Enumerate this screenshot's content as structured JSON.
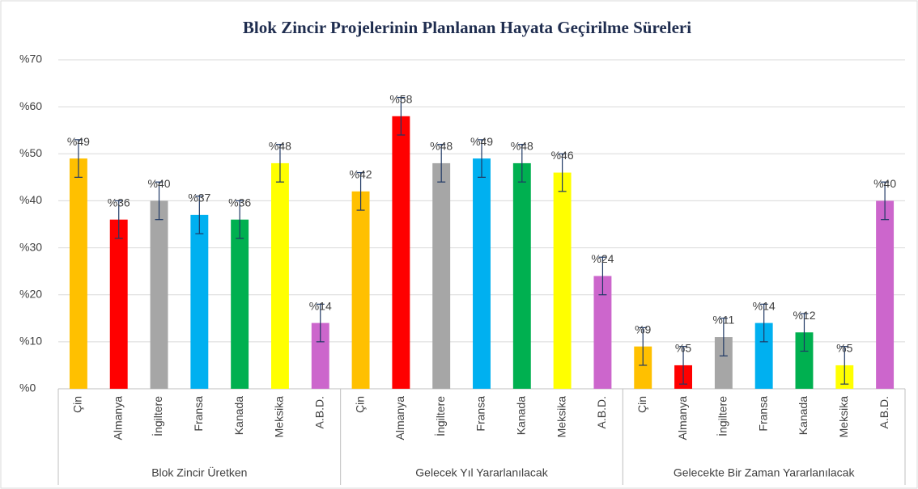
{
  "chart_data": {
    "type": "bar",
    "title": "Blok Zincir Projelerinin Planlanan Hayata Geçirilme Süreleri",
    "categories": [
      "Blok Zincir Üretken",
      "Gelecek Yıl Yararlanılacak",
      "Gelecekte Bir Zaman Yararlanılacak"
    ],
    "series": [
      {
        "name": "Çin",
        "color": "#ffc000",
        "values": [
          49,
          42,
          9
        ],
        "value_labels": [
          "%49",
          "%42",
          "%9"
        ],
        "errors": [
          4,
          4,
          4
        ]
      },
      {
        "name": "Almanya",
        "color": "#ff0000",
        "values": [
          36,
          58,
          5
        ],
        "value_labels": [
          "%36",
          "%58",
          "%5"
        ],
        "errors": [
          4,
          4,
          4
        ]
      },
      {
        "name": "İngiltere",
        "color": "#a6a6a6",
        "values": [
          40,
          48,
          11
        ],
        "value_labels": [
          "%40",
          "%48",
          "%11"
        ],
        "errors": [
          4,
          4,
          4
        ]
      },
      {
        "name": "Fransa",
        "color": "#00b0f0",
        "values": [
          37,
          49,
          14
        ],
        "value_labels": [
          "%37",
          "%49",
          "%14"
        ],
        "errors": [
          4,
          4,
          4
        ]
      },
      {
        "name": "Kanada",
        "color": "#00b050",
        "values": [
          36,
          48,
          12
        ],
        "value_labels": [
          "%36",
          "%48",
          "%12"
        ],
        "errors": [
          4,
          4,
          4
        ]
      },
      {
        "name": "Meksika",
        "color": "#ffff00",
        "values": [
          48,
          46,
          5
        ],
        "value_labels": [
          "%48",
          "%46",
          "%5"
        ],
        "errors": [
          4,
          4,
          4
        ]
      },
      {
        "name": "A.B.D.",
        "color": "#cc66cc",
        "values": [
          14,
          24,
          40
        ],
        "value_labels": [
          "%14",
          "%24",
          "%40"
        ],
        "errors": [
          4,
          4,
          4
        ]
      }
    ],
    "ylim": [
      0,
      70
    ],
    "yticks": [
      {
        "value": 0,
        "label": "%0"
      },
      {
        "value": 10,
        "label": "%10"
      },
      {
        "value": 20,
        "label": "%20"
      },
      {
        "value": 30,
        "label": "%30"
      },
      {
        "value": 40,
        "label": "%40"
      },
      {
        "value": 50,
        "label": "%50"
      },
      {
        "value": 60,
        "label": "%60"
      },
      {
        "value": 70,
        "label": "%70"
      }
    ],
    "grid": true
  }
}
